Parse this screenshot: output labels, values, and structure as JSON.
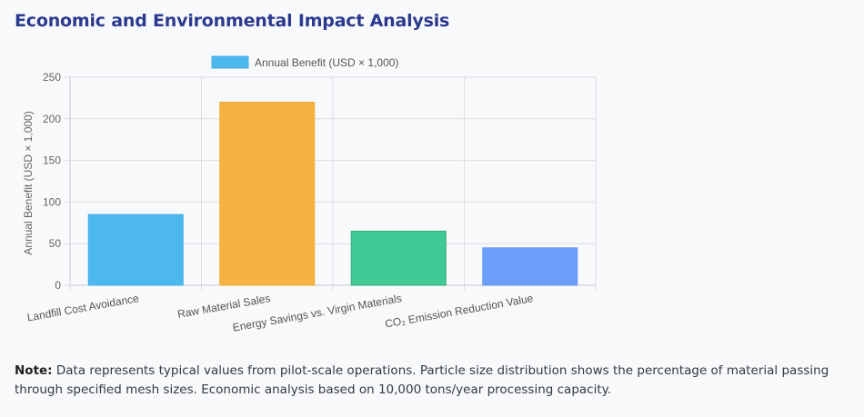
{
  "page": {
    "title": "Economic and Environmental Impact Analysis",
    "note_label": "Note:",
    "note_text": "Data represents typical values from pilot-scale operations. Particle size distribution shows the percentage of material passing through specified mesh sizes. Economic analysis based on 10,000 tons/year processing capacity."
  },
  "chart_data": {
    "type": "bar",
    "title": "",
    "categories": [
      "Landfill Cost Avoidance",
      "Raw Material Sales",
      "Energy Savings vs. Virgin Materials",
      "CO₂ Emission Reduction Value"
    ],
    "series": [
      {
        "name": "Annual Benefit (USD × 1,000)",
        "values": [
          85,
          220,
          65,
          45
        ]
      }
    ],
    "bar_colors": [
      "#4cb8ee",
      "#f5b441",
      "#41c996",
      "#6c9ff9"
    ],
    "bar_borders": [
      "#45aee6",
      "#eeab37",
      "#2fae78",
      "#6898f2"
    ],
    "legend_color": "#4cb8ee",
    "xlabel": "",
    "ylabel": "Annual Benefit (USD × 1,000)",
    "ylim": [
      0,
      250
    ],
    "yticks": [
      0,
      50,
      100,
      150,
      200,
      250
    ],
    "grid": true,
    "legend_position": "top-center"
  }
}
